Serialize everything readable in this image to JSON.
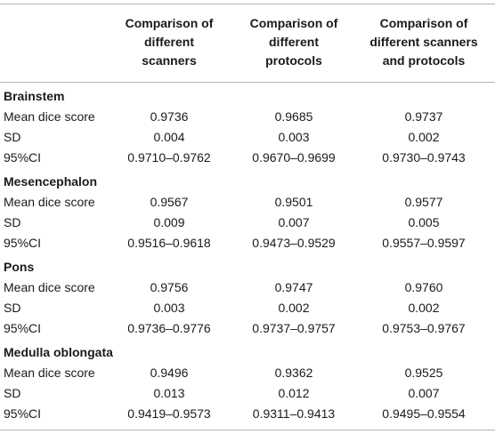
{
  "columns": [
    "Comparison of\ndifferent\nscanners",
    "Comparison of\ndifferent\nprotocols",
    "Comparison of\ndifferent scanners\nand protocols"
  ],
  "sections": [
    {
      "title": "Brainstem",
      "rows": [
        {
          "label": "Mean dice score",
          "values": [
            "0.9736",
            "0.9685",
            "0.9737"
          ]
        },
        {
          "label": "SD",
          "values": [
            "0.004",
            "0.003",
            "0.002"
          ]
        },
        {
          "label": "95%CI",
          "values": [
            "0.9710–0.9762",
            "0.9670–0.9699",
            "0.9730–0.9743"
          ]
        }
      ]
    },
    {
      "title": "Mesencephalon",
      "rows": [
        {
          "label": "Mean dice score",
          "values": [
            "0.9567",
            "0.9501",
            "0.9577"
          ]
        },
        {
          "label": "SD",
          "values": [
            "0.009",
            "0.007",
            "0.005"
          ]
        },
        {
          "label": "95%CI",
          "values": [
            "0.9516–0.9618",
            "0.9473–0.9529",
            "0.9557–0.9597"
          ]
        }
      ]
    },
    {
      "title": "Pons",
      "rows": [
        {
          "label": "Mean dice score",
          "values": [
            "0.9756",
            "0.9747",
            "0.9760"
          ]
        },
        {
          "label": "SD",
          "values": [
            "0.003",
            "0.002",
            "0.002"
          ]
        },
        {
          "label": "95%CI",
          "values": [
            "0.9736–0.9776",
            "0.9737–0.9757",
            "0.9753–0.9767"
          ]
        }
      ]
    },
    {
      "title": "Medulla oblongata",
      "rows": [
        {
          "label": "Mean dice score",
          "values": [
            "0.9496",
            "0.9362",
            "0.9525"
          ]
        },
        {
          "label": "SD",
          "values": [
            "0.013",
            "0.012",
            "0.007"
          ]
        },
        {
          "label": "95%CI",
          "values": [
            "0.9419–0.9573",
            "0.9311–0.9413",
            "0.9495–0.9554"
          ]
        }
      ]
    }
  ]
}
